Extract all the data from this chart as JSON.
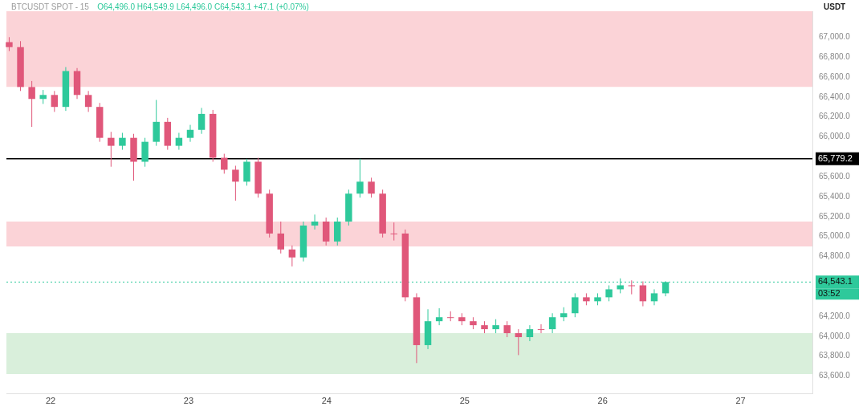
{
  "chart_data": {
    "type": "candlestick",
    "title": "BTCUSDT SPOT - 15",
    "subtitle": "O64,496.0 H64,549.9 L64,496.0 C64,543.1 +47.1 (+0.07%)",
    "ylabel": "USDT",
    "annotations": [
      "03:52"
    ],
    "x": [
      21.7,
      21.782,
      21.864,
      21.946,
      22.028,
      22.11,
      22.192,
      22.274,
      22.356,
      22.438,
      22.52,
      22.602,
      22.684,
      22.766,
      22.848,
      22.93,
      23.012,
      23.094,
      23.176,
      23.258,
      23.34,
      23.422,
      23.504,
      23.586,
      23.668,
      23.75,
      23.832,
      23.914,
      23.996,
      24.078,
      24.16,
      24.242,
      24.324,
      24.406,
      24.488,
      24.57,
      24.652,
      24.734,
      24.816,
      24.898,
      24.98,
      25.062,
      25.144,
      25.226,
      25.308,
      25.39,
      25.472,
      25.554,
      25.636,
      25.718,
      25.8,
      25.882,
      25.964,
      26.046,
      26.128,
      26.21,
      26.292,
      26.374,
      26.456
    ],
    "ohlc": [
      [
        66950,
        67000,
        66860,
        66900
      ],
      [
        66900,
        66960,
        66460,
        66500
      ],
      [
        66500,
        66560,
        66100,
        66380
      ],
      [
        66380,
        66470,
        66330,
        66420
      ],
      [
        66420,
        66460,
        66250,
        66300
      ],
      [
        66300,
        66700,
        66260,
        66660
      ],
      [
        66660,
        66690,
        66380,
        66420
      ],
      [
        66420,
        66460,
        66250,
        66300
      ],
      [
        66300,
        66340,
        65950,
        65990
      ],
      [
        65990,
        66050,
        65700,
        65910
      ],
      [
        65910,
        66040,
        65870,
        65990
      ],
      [
        65990,
        66030,
        65560,
        65750
      ],
      [
        65750,
        65990,
        65700,
        65950
      ],
      [
        65950,
        66370,
        65910,
        66150
      ],
      [
        66150,
        66190,
        65870,
        65910
      ],
      [
        65910,
        66040,
        65870,
        65990
      ],
      [
        65990,
        66120,
        65950,
        66070
      ],
      [
        66070,
        66290,
        66030,
        66230
      ],
      [
        66230,
        66270,
        65750,
        65790
      ],
      [
        65790,
        65830,
        65630,
        65670
      ],
      [
        65670,
        65710,
        65360,
        65550
      ],
      [
        65550,
        65779.2,
        65510,
        65750
      ],
      [
        65750,
        65790,
        65390,
        65430
      ],
      [
        65430,
        65470,
        64990,
        65030
      ],
      [
        65030,
        65150,
        64830,
        64870
      ],
      [
        64870,
        64910,
        64700,
        64790
      ],
      [
        64790,
        65150,
        64750,
        65110
      ],
      [
        65110,
        65220,
        65070,
        65150
      ],
      [
        65150,
        65190,
        64910,
        64950
      ],
      [
        64950,
        65190,
        64910,
        65150
      ],
      [
        65150,
        65470,
        65110,
        65430
      ],
      [
        65430,
        65779.2,
        65390,
        65550
      ],
      [
        65550,
        65590,
        65390,
        65430
      ],
      [
        65430,
        65470,
        64990,
        65030
      ],
      [
        65030,
        65140,
        64960,
        65030
      ],
      [
        65030,
        65070,
        64350,
        64390
      ],
      [
        64390,
        64430,
        63730,
        63910
      ],
      [
        63910,
        64270,
        63870,
        64150
      ],
      [
        64150,
        64280,
        64110,
        64190
      ],
      [
        64190,
        64250,
        64150,
        64190
      ],
      [
        64190,
        64230,
        64110,
        64150
      ],
      [
        64150,
        64190,
        64070,
        64110
      ],
      [
        64110,
        64150,
        64030,
        64070
      ],
      [
        64070,
        64170,
        64030,
        64110
      ],
      [
        64110,
        64150,
        63990,
        64030
      ],
      [
        64030,
        64070,
        63810,
        63990
      ],
      [
        63990,
        64110,
        63950,
        64070
      ],
      [
        64070,
        64120,
        64030,
        64070
      ],
      [
        64070,
        64230,
        64030,
        64190
      ],
      [
        64190,
        64290,
        64150,
        64230
      ],
      [
        64230,
        64430,
        64190,
        64390
      ],
      [
        64390,
        64430,
        64310,
        64350
      ],
      [
        64350,
        64430,
        64310,
        64390
      ],
      [
        64390,
        64510,
        64350,
        64470
      ],
      [
        64470,
        64580,
        64430,
        64510
      ],
      [
        64510,
        64560,
        64420,
        64510
      ],
      [
        64510,
        64550,
        64300,
        64350
      ],
      [
        64350,
        64470,
        64310,
        64430
      ],
      [
        64430,
        64549.9,
        64400,
        64543.1
      ]
    ],
    "colors": [
      "#e0577a",
      "#e0577a",
      "#e0577a",
      "#2ec99b",
      "#e0577a",
      "#2ec99b",
      "#e0577a",
      "#e0577a",
      "#e0577a",
      "#e0577a",
      "#2ec99b",
      "#e0577a",
      "#2ec99b",
      "#2ec99b",
      "#e0577a",
      "#2ec99b",
      "#2ec99b",
      "#2ec99b",
      "#e0577a",
      "#e0577a",
      "#e0577a",
      "#2ec99b",
      "#e0577a",
      "#e0577a",
      "#e0577a",
      "#e0577a",
      "#2ec99b",
      "#2ec99b",
      "#e0577a",
      "#2ec99b",
      "#2ec99b",
      "#2ec99b",
      "#e0577a",
      "#e0577a",
      "#e0577a",
      "#e0577a",
      "#e0577a",
      "#2ec99b",
      "#2ec99b",
      "#e0577a",
      "#e0577a",
      "#e0577a",
      "#e0577a",
      "#2ec99b",
      "#e0577a",
      "#e0577a",
      "#2ec99b",
      "#e0577a",
      "#2ec99b",
      "#2ec99b",
      "#2ec99b",
      "#e0577a",
      "#2ec99b",
      "#2ec99b",
      "#2ec99b",
      "#e0577a",
      "#e0577a",
      "#2ec99b",
      "#2ec99b"
    ],
    "xlim": [
      21.68,
      27.52
    ],
    "xticks": [
      22,
      23,
      24,
      25,
      26,
      27
    ],
    "ylim": [
      63420,
      67260
    ],
    "yticks": [
      {
        "value": 63600,
        "label": "63,600.0"
      },
      {
        "value": 63800,
        "label": "63,800.0"
      },
      {
        "value": 64000,
        "label": "64,000.0"
      },
      {
        "value": 64200,
        "label": "64,200.0"
      },
      {
        "value": 64800,
        "label": "64,800.0"
      },
      {
        "value": 65000,
        "label": "65,000.0"
      },
      {
        "value": 65200,
        "label": "65,200.0"
      },
      {
        "value": 65400,
        "label": "65,400.0"
      },
      {
        "value": 65600,
        "label": "65,600.0"
      },
      {
        "value": 66000,
        "label": "66,000.0"
      },
      {
        "value": 66200,
        "label": "66,200.0"
      },
      {
        "value": 66400,
        "label": "66,400.0"
      },
      {
        "value": 66600,
        "label": "66,600.0"
      },
      {
        "value": 66800,
        "label": "66,800.0"
      },
      {
        "value": 67000,
        "label": "67,000.0"
      }
    ],
    "bands": [
      {
        "axis": "y",
        "from": 66500,
        "to": 67260,
        "label": null,
        "color": "#fbd3d7"
      },
      {
        "axis": "y",
        "from": 64900,
        "to": 65150,
        "label": null,
        "color": "#fbd3d7"
      },
      {
        "axis": "y",
        "from": 63620,
        "to": 64030,
        "label": null,
        "color": "#d9efdb"
      }
    ],
    "ref_lines": [
      {
        "axis": "y",
        "value": 65779.2,
        "label": "65,779.2",
        "color": "#000000",
        "line_style": "solid"
      },
      {
        "axis": "y",
        "value": 64543.1,
        "label": "64,543.1",
        "color": "#2ec99b",
        "line_style": "dotted"
      }
    ],
    "grid": false,
    "legend": false
  }
}
